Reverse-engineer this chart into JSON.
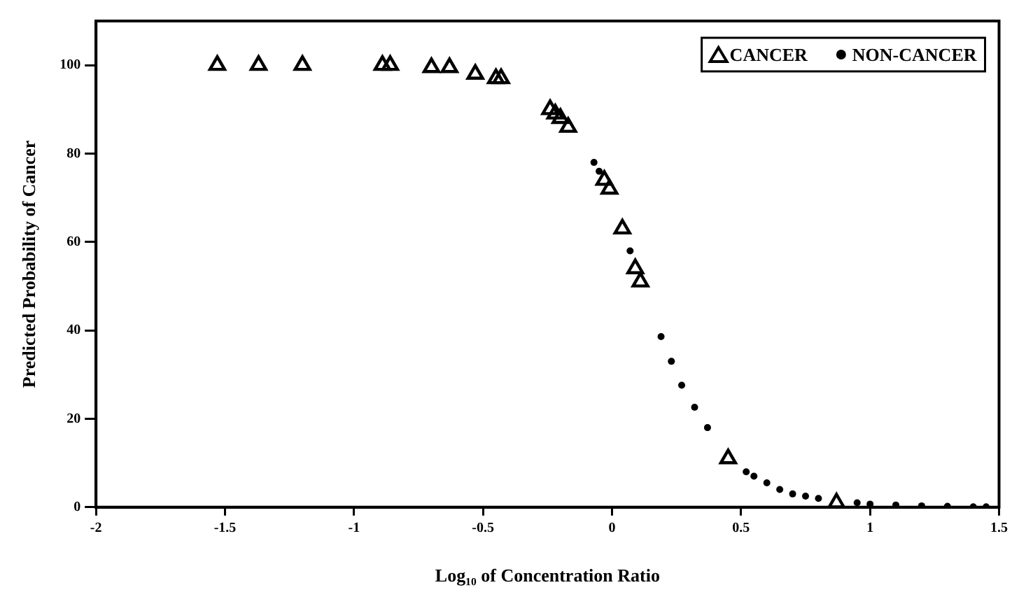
{
  "chart_data": {
    "type": "scatter",
    "xlabel": "Log₁₀ of Concentration Ratio",
    "ylabel": "Predicted Probability of Cancer",
    "xlim": [
      -2,
      1.5
    ],
    "xticks": [
      -2,
      -1.5,
      -1,
      -0.5,
      0,
      0.5,
      1,
      1.5
    ],
    "ylim": [
      0,
      110
    ],
    "yticks": [
      0,
      20,
      40,
      60,
      80,
      100
    ],
    "grid": false,
    "legend": "top right",
    "series": [
      {
        "name": "CANCER",
        "color": "#000000",
        "marker": "triangle",
        "x": [
          -1.53,
          -1.37,
          -1.2,
          -0.89,
          -0.86,
          -0.7,
          -0.63,
          -0.53,
          -0.45,
          -0.43,
          -0.24,
          -0.22,
          -0.2,
          -0.17,
          -0.03,
          -0.01,
          0.04,
          0.09,
          0.11,
          0.45,
          0.87
        ],
        "values": [
          100,
          100,
          100,
          100,
          100,
          99.5,
          99.5,
          98,
          97,
          97,
          90,
          89,
          88,
          86,
          74,
          72,
          63,
          54,
          51,
          11,
          1
        ]
      },
      {
        "name": "NON-CANCER",
        "color": "#000000",
        "marker": "circle",
        "x": [
          -0.07,
          -0.05,
          0.07,
          0.19,
          0.23,
          0.27,
          0.32,
          0.37,
          0.52,
          0.55,
          0.6,
          0.65,
          0.7,
          0.75,
          0.8,
          0.95,
          1.0,
          1.1,
          1.2,
          1.3,
          1.4,
          1.45
        ],
        "values": [
          78,
          76,
          58,
          38.6,
          33,
          27.6,
          22.6,
          18,
          8,
          7,
          5.5,
          4,
          3,
          2.5,
          2,
          1,
          0.7,
          0.5,
          0.3,
          0.2,
          0.1,
          0.1
        ]
      }
    ]
  }
}
